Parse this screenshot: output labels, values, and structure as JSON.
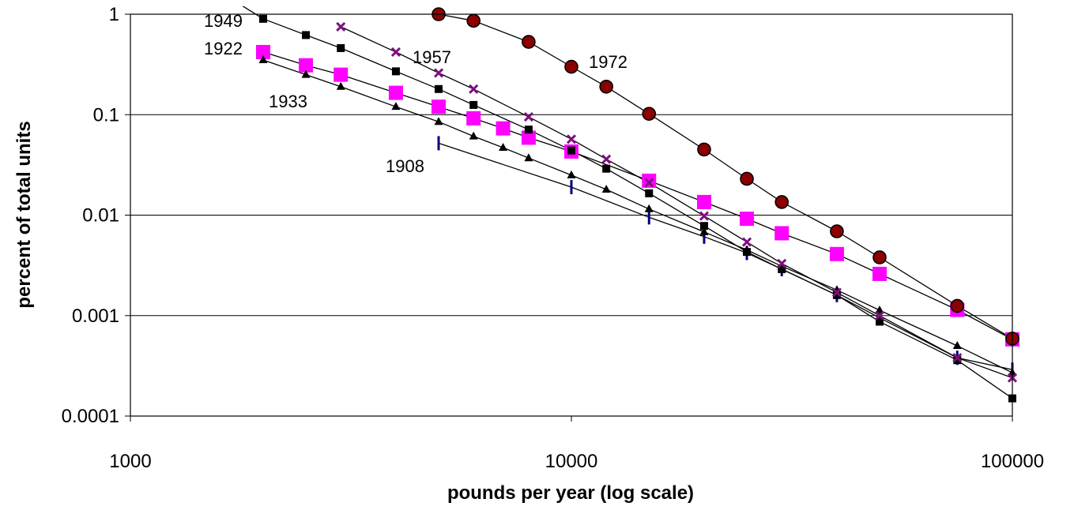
{
  "chart_data": {
    "type": "line",
    "title": "",
    "xlabel": "pounds per year (log scale)",
    "ylabel": "percent of total units",
    "x_scale": "log",
    "y_scale": "log",
    "xlim": [
      1000,
      100000
    ],
    "ylim": [
      0.0001,
      1
    ],
    "x_tick_labels": [
      "1000",
      "10000",
      "100000"
    ],
    "y_tick_labels": [
      "1",
      "0.1",
      "0.01",
      "0.001",
      "0.0001"
    ],
    "grid": "horizontal",
    "legend": "none",
    "series": [
      {
        "name": "1908",
        "marker": "dash",
        "color": "#000080",
        "x": [
          5000,
          10000,
          15000,
          20000,
          25000,
          30000,
          40000,
          50000,
          75000,
          100000
        ],
        "y": [
          0.052,
          0.019,
          0.0095,
          0.0061,
          0.0042,
          0.0029,
          0.0016,
          0.00095,
          0.00038,
          0.00029
        ]
      },
      {
        "name": "1922",
        "marker": "square",
        "color": "#ff00ff",
        "x": [
          2000,
          2500,
          3000,
          4000,
          5000,
          6000,
          7000,
          8000,
          10000,
          15000,
          20000,
          25000,
          30000,
          40000,
          50000,
          75000,
          100000
        ],
        "y": [
          0.42,
          0.31,
          0.25,
          0.165,
          0.12,
          0.092,
          0.073,
          0.059,
          0.043,
          0.022,
          0.0135,
          0.0092,
          0.0066,
          0.0041,
          0.0026,
          0.00114,
          0.00058
        ]
      },
      {
        "name": "1933",
        "marker": "triangle",
        "color": "#000000",
        "x": [
          2000,
          2500,
          3000,
          4000,
          5000,
          6000,
          7000,
          8000,
          10000,
          12000,
          15000,
          20000,
          25000,
          30000,
          40000,
          50000,
          75000,
          100000
        ],
        "y": [
          0.35,
          0.25,
          0.19,
          0.12,
          0.085,
          0.061,
          0.047,
          0.037,
          0.025,
          0.018,
          0.0115,
          0.0068,
          0.0045,
          0.0031,
          0.0018,
          0.00113,
          0.0005,
          0.00027
        ]
      },
      {
        "name": "1949",
        "marker": "square-small",
        "color": "#000000",
        "x": [
          2000,
          2500,
          3000,
          4000,
          5000,
          6000,
          8000,
          10000,
          12000,
          15000,
          20000,
          25000,
          30000,
          40000,
          50000,
          75000,
          100000
        ],
        "y": [
          0.9,
          0.62,
          0.46,
          0.27,
          0.18,
          0.125,
          0.071,
          0.044,
          0.029,
          0.0165,
          0.0078,
          0.0043,
          0.0029,
          0.0016,
          0.00087,
          0.00036,
          0.00015
        ]
      },
      {
        "name": "1957",
        "marker": "x",
        "color": "#7f0f7f",
        "x": [
          3000,
          4000,
          5000,
          6000,
          8000,
          10000,
          12000,
          15000,
          20000,
          25000,
          30000,
          40000,
          50000,
          75000,
          100000
        ],
        "y": [
          0.75,
          0.42,
          0.26,
          0.18,
          0.095,
          0.057,
          0.036,
          0.021,
          0.0098,
          0.0054,
          0.0033,
          0.0017,
          0.001,
          0.00038,
          0.00024
        ]
      },
      {
        "name": "1972",
        "marker": "circle",
        "color": "#8b0000",
        "x": [
          5000,
          6000,
          8000,
          10000,
          12000,
          15000,
          20000,
          25000,
          30000,
          40000,
          50000,
          75000,
          100000
        ],
        "y": [
          1.0,
          0.86,
          0.53,
          0.3,
          0.19,
          0.102,
          0.045,
          0.023,
          0.0135,
          0.0069,
          0.0038,
          0.00125,
          0.00059
        ]
      }
    ]
  }
}
